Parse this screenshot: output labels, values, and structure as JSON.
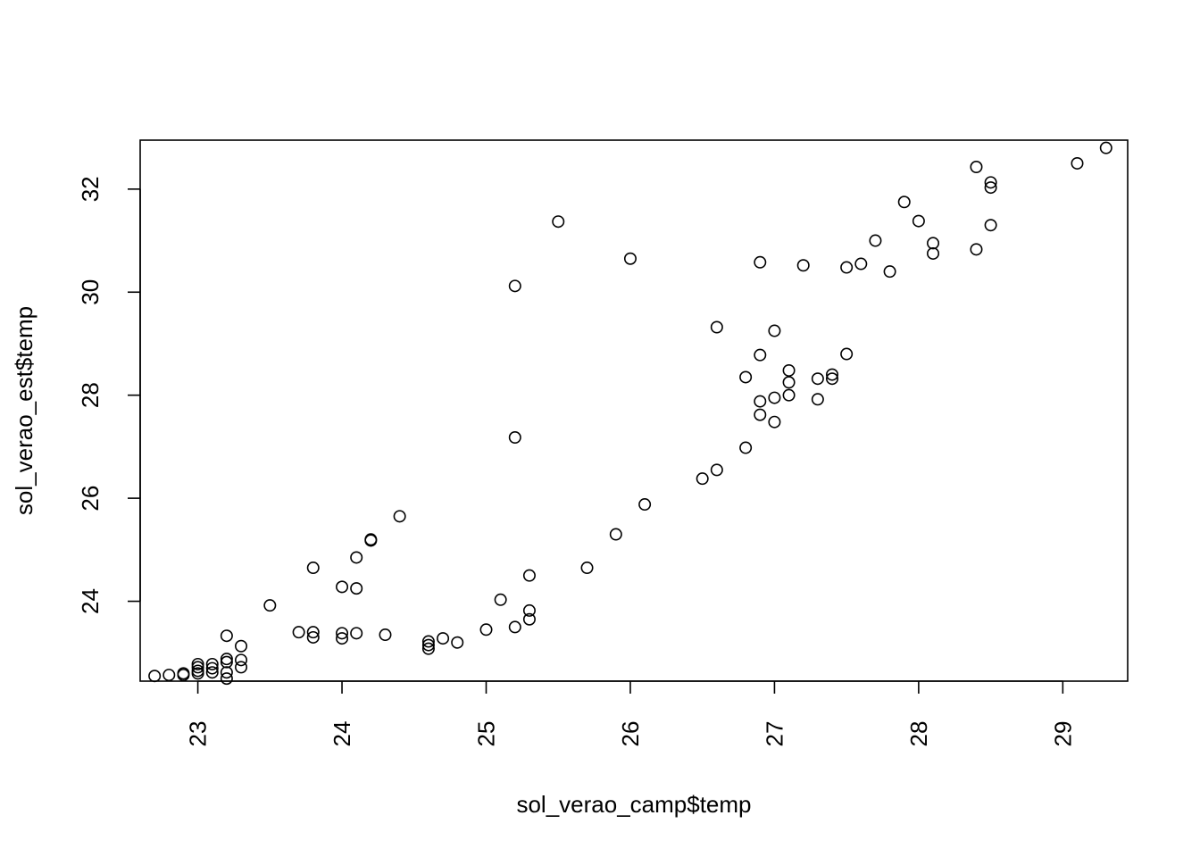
{
  "chart_data": {
    "type": "scatter",
    "xlabel": "sol_verao_camp$temp",
    "ylabel": "sol_verao_est$temp",
    "xlim": [
      22.6,
      29.45
    ],
    "ylim": [
      22.45,
      32.95
    ],
    "x_ticks": [
      23,
      24,
      25,
      26,
      27,
      28,
      29
    ],
    "y_ticks": [
      24,
      26,
      28,
      30,
      32
    ],
    "x_tick_labels": [
      "23",
      "24",
      "25",
      "26",
      "27",
      "28",
      "29"
    ],
    "y_tick_labels": [
      "24",
      "26",
      "28",
      "30",
      "32"
    ],
    "x_tick_label_rotation": "vertical",
    "grid": false,
    "marker": "open-circle",
    "points": [
      [
        22.7,
        22.55
      ],
      [
        22.8,
        22.57
      ],
      [
        22.9,
        22.57
      ],
      [
        22.9,
        22.6
      ],
      [
        23.0,
        22.6
      ],
      [
        23.0,
        22.65
      ],
      [
        23.0,
        22.72
      ],
      [
        23.0,
        22.78
      ],
      [
        23.1,
        22.62
      ],
      [
        23.1,
        22.7
      ],
      [
        23.1,
        22.78
      ],
      [
        23.2,
        22.5
      ],
      [
        23.2,
        22.62
      ],
      [
        23.2,
        22.82
      ],
      [
        23.2,
        22.88
      ],
      [
        23.2,
        23.33
      ],
      [
        23.3,
        22.72
      ],
      [
        23.3,
        22.86
      ],
      [
        23.3,
        23.13
      ],
      [
        23.5,
        23.92
      ],
      [
        23.7,
        23.4
      ],
      [
        23.8,
        23.3
      ],
      [
        23.8,
        23.4
      ],
      [
        23.8,
        24.65
      ],
      [
        24.0,
        23.28
      ],
      [
        24.0,
        23.38
      ],
      [
        24.0,
        24.28
      ],
      [
        24.1,
        23.38
      ],
      [
        24.1,
        24.25
      ],
      [
        24.1,
        24.85
      ],
      [
        24.2,
        25.18
      ],
      [
        24.2,
        25.2
      ],
      [
        24.3,
        23.35
      ],
      [
        24.4,
        25.65
      ],
      [
        24.6,
        23.08
      ],
      [
        24.6,
        23.15
      ],
      [
        24.6,
        23.22
      ],
      [
        24.7,
        23.28
      ],
      [
        24.8,
        23.2
      ],
      [
        25.0,
        23.45
      ],
      [
        25.1,
        24.03
      ],
      [
        25.2,
        23.5
      ],
      [
        25.2,
        27.18
      ],
      [
        25.2,
        30.12
      ],
      [
        25.3,
        23.65
      ],
      [
        25.3,
        23.82
      ],
      [
        25.3,
        24.5
      ],
      [
        25.5,
        31.37
      ],
      [
        25.7,
        24.65
      ],
      [
        25.9,
        25.3
      ],
      [
        26.0,
        30.65
      ],
      [
        26.1,
        25.88
      ],
      [
        26.5,
        26.38
      ],
      [
        26.6,
        26.55
      ],
      [
        26.6,
        29.32
      ],
      [
        26.8,
        26.98
      ],
      [
        26.8,
        28.35
      ],
      [
        26.9,
        27.62
      ],
      [
        26.9,
        27.88
      ],
      [
        26.9,
        28.78
      ],
      [
        26.9,
        30.58
      ],
      [
        27.0,
        27.48
      ],
      [
        27.0,
        27.95
      ],
      [
        27.0,
        29.25
      ],
      [
        27.1,
        28.0
      ],
      [
        27.1,
        28.25
      ],
      [
        27.1,
        28.48
      ],
      [
        27.2,
        30.52
      ],
      [
        27.3,
        27.92
      ],
      [
        27.3,
        28.32
      ],
      [
        27.4,
        28.32
      ],
      [
        27.4,
        28.4
      ],
      [
        27.5,
        28.8
      ],
      [
        27.5,
        30.48
      ],
      [
        27.6,
        30.55
      ],
      [
        27.7,
        31.0
      ],
      [
        27.8,
        30.4
      ],
      [
        27.9,
        31.75
      ],
      [
        28.0,
        31.38
      ],
      [
        28.1,
        30.75
      ],
      [
        28.1,
        30.95
      ],
      [
        28.4,
        30.83
      ],
      [
        28.4,
        32.43
      ],
      [
        28.5,
        31.3
      ],
      [
        28.5,
        32.03
      ],
      [
        28.5,
        32.13
      ],
      [
        29.1,
        32.5
      ],
      [
        29.3,
        32.8
      ]
    ]
  }
}
